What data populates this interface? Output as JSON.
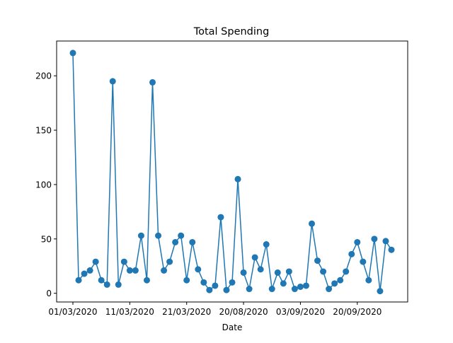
{
  "chart_data": {
    "type": "line",
    "title": "Total Spending",
    "xlabel": "Date",
    "ylabel": "",
    "x_ticks": [
      "01/03/2020",
      "11/03/2020",
      "21/03/2020",
      "20/08/2020",
      "03/09/2020",
      "20/09/2020"
    ],
    "y_ticks": [
      0,
      50,
      100,
      150,
      200
    ],
    "ylim": [
      -8,
      232
    ],
    "grid": false,
    "series": [
      {
        "color": "#1f77b4",
        "marker": "circle",
        "values": [
          221,
          12,
          18,
          21,
          29,
          12,
          8,
          195,
          8,
          29,
          21,
          21,
          53,
          12,
          194,
          53,
          21,
          29,
          47,
          53,
          12,
          47,
          22,
          10,
          3,
          7,
          70,
          3,
          10,
          105,
          19,
          4,
          33,
          22,
          45,
          4,
          19,
          9,
          20,
          4,
          6,
          7,
          64,
          30,
          20,
          4,
          9,
          12,
          20,
          36,
          47,
          29,
          12,
          50,
          2,
          48,
          40
        ]
      }
    ]
  }
}
